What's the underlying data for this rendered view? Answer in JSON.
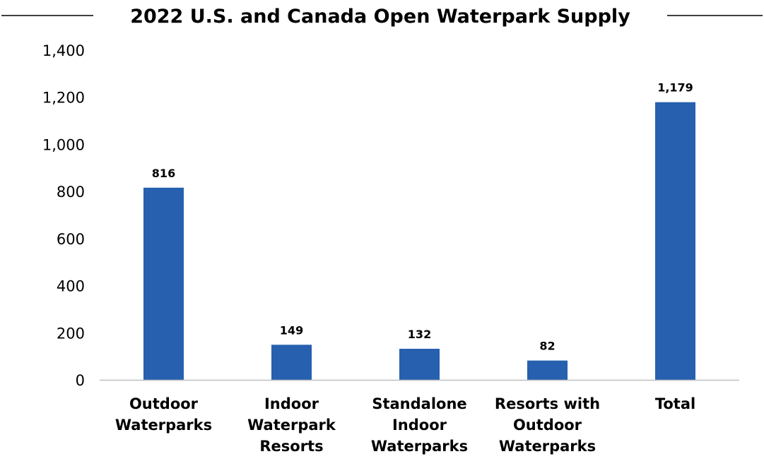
{
  "chart_data": {
    "type": "bar",
    "title": "2022 U.S. and Canada Open Waterpark Supply",
    "categories": [
      [
        "Outdoor",
        "Waterparks"
      ],
      [
        "Indoor",
        "Waterpark",
        "Resorts"
      ],
      [
        "Standalone",
        "Indoor",
        "Waterparks"
      ],
      [
        "Resorts with",
        "Outdoor",
        "Waterparks"
      ],
      [
        "Total"
      ]
    ],
    "values": [
      816,
      149,
      132,
      82,
      1179
    ],
    "data_labels": [
      "816",
      "149",
      "132",
      "82",
      "1,179"
    ],
    "yticks": [
      0,
      200,
      400,
      600,
      800,
      1000,
      1200,
      1400
    ],
    "ytick_labels": [
      "0",
      "200",
      "400",
      "600",
      "800",
      "1,000",
      "1,200",
      "1,400"
    ],
    "ylim": [
      0,
      1400
    ],
    "grid": false,
    "legend": "none",
    "bar_color": "#2660AE",
    "axis_color": "#BFBFBF"
  }
}
